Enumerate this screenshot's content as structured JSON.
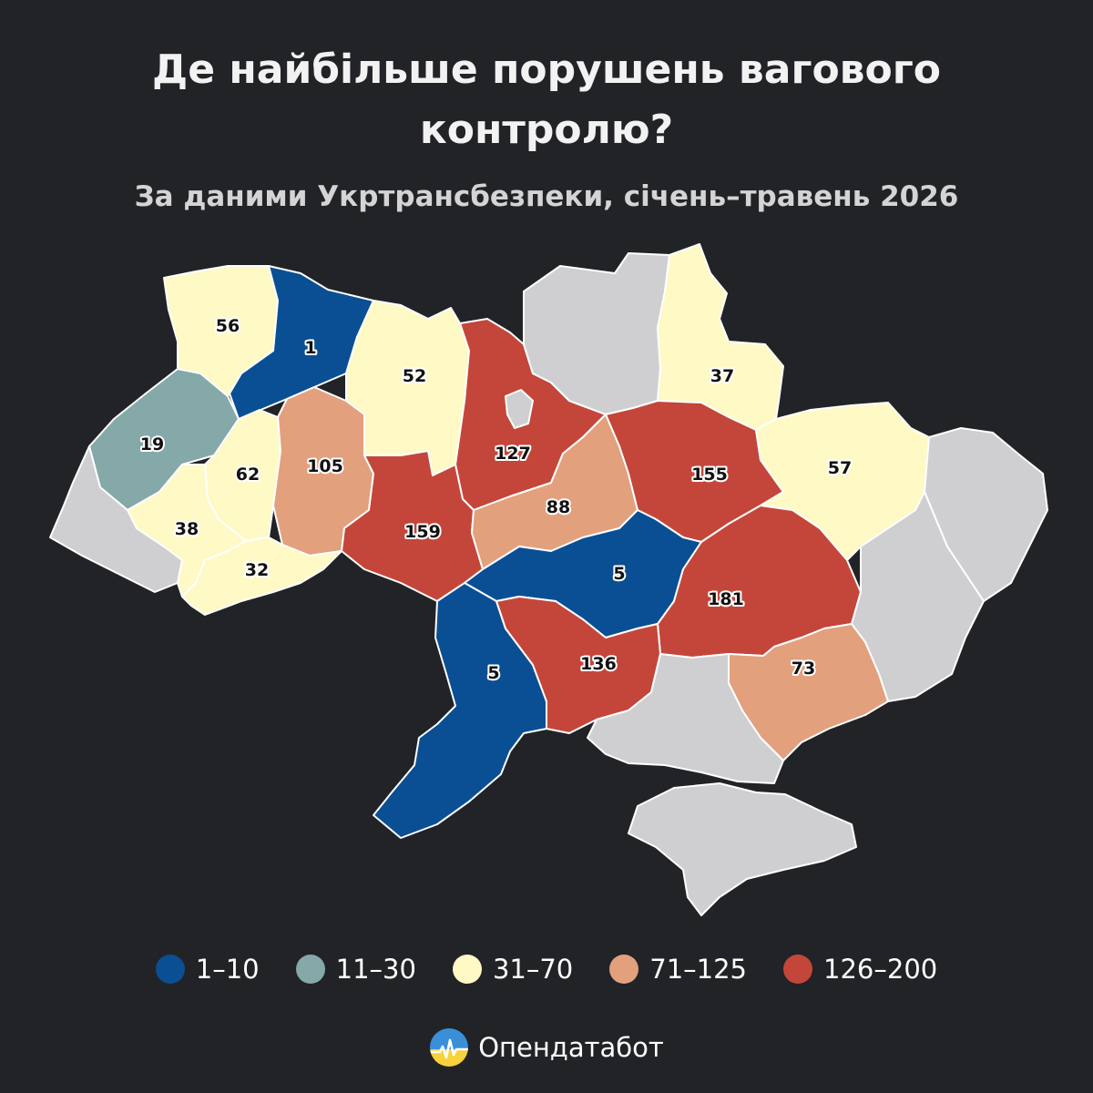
{
  "title": {
    "line1": "Де найбільше порушень вагового",
    "line2": "контролю?"
  },
  "subtitle": "За даними Укртрансбезпеки, січень–травень 2026",
  "colors": {
    "background": "#212327",
    "no_data": "#cfcfd1",
    "border": "#ffffff"
  },
  "legend": [
    {
      "label": "1–10",
      "color": "#0a4f93"
    },
    {
      "label": "11–30",
      "color": "#85a8a9"
    },
    {
      "label": "31–70",
      "color": "#fef9c5"
    },
    {
      "label": "71–125",
      "color": "#e2a07d"
    },
    {
      "label": "126–200",
      "color": "#c4463a"
    }
  ],
  "regions": [
    {
      "id": "volyn",
      "value": 56,
      "color": "#fef9c5"
    },
    {
      "id": "rivne",
      "value": 1,
      "color": "#0a4f93"
    },
    {
      "id": "zhytomyr",
      "value": 52,
      "color": "#fef9c5"
    },
    {
      "id": "kyiv",
      "value": 127,
      "color": "#c4463a"
    },
    {
      "id": "chernihiv",
      "value": null,
      "color": "#cfcfd1"
    },
    {
      "id": "sumy",
      "value": 37,
      "color": "#fef9c5"
    },
    {
      "id": "lviv",
      "value": 19,
      "color": "#85a8a9"
    },
    {
      "id": "ternopil",
      "value": 62,
      "color": "#fef9c5"
    },
    {
      "id": "khmelnytskyi",
      "value": 105,
      "color": "#e2a07d"
    },
    {
      "id": "vinnytsia",
      "value": 159,
      "color": "#c4463a"
    },
    {
      "id": "cherkasy",
      "value": 88,
      "color": "#e2a07d"
    },
    {
      "id": "poltava",
      "value": 155,
      "color": "#c4463a"
    },
    {
      "id": "kharkiv",
      "value": 57,
      "color": "#fef9c5"
    },
    {
      "id": "zakarpattia",
      "value": null,
      "color": "#cfcfd1"
    },
    {
      "id": "ivano-frankivsk",
      "value": 38,
      "color": "#fef9c5"
    },
    {
      "id": "chernivtsi",
      "value": 32,
      "color": "#fef9c5"
    },
    {
      "id": "kirovohrad",
      "value": 5,
      "color": "#0a4f93"
    },
    {
      "id": "dnipropetrovsk",
      "value": 181,
      "color": "#c4463a"
    },
    {
      "id": "luhansk",
      "value": null,
      "color": "#cfcfd1"
    },
    {
      "id": "donetsk",
      "value": null,
      "color": "#cfcfd1"
    },
    {
      "id": "odesa",
      "value": 5,
      "color": "#0a4f93"
    },
    {
      "id": "mykolaiv",
      "value": 136,
      "color": "#c4463a"
    },
    {
      "id": "zaporizhzhia",
      "value": 73,
      "color": "#e2a07d"
    },
    {
      "id": "kherson",
      "value": null,
      "color": "#cfcfd1"
    },
    {
      "id": "crimea",
      "value": null,
      "color": "#cfcfd1"
    }
  ],
  "logo": {
    "text": "Опендатабот",
    "icon": "opendatabot-logo-icon"
  }
}
